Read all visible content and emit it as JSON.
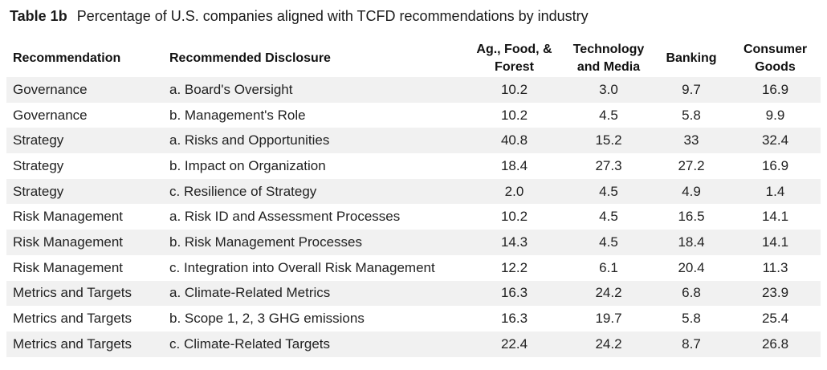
{
  "caption": {
    "label": "Table 1b",
    "title": "Percentage of U.S. companies aligned with TCFD recommendations by industry"
  },
  "headers": {
    "recommendation": "Recommendation",
    "disclosure": "Recommended Disclosure",
    "ag_line1": "Ag., Food, &",
    "ag_line2": "Forest",
    "tech_line1": "Technology",
    "tech_line2": "and Media",
    "banking": "Banking",
    "consumer_line1": "Consumer",
    "consumer_line2": "Goods"
  },
  "rows": [
    {
      "recommendation": "Governance",
      "disclosure": "a. Board's Oversight",
      "ag": "10.2",
      "tech": "3.0",
      "banking": "9.7",
      "consumer": "16.9"
    },
    {
      "recommendation": "Governance",
      "disclosure": "b. Management's Role",
      "ag": "10.2",
      "tech": "4.5",
      "banking": "5.8",
      "consumer": "9.9"
    },
    {
      "recommendation": "Strategy",
      "disclosure": "a. Risks and Opportunities",
      "ag": "40.8",
      "tech": "15.2",
      "banking": "33",
      "consumer": "32.4"
    },
    {
      "recommendation": "Strategy",
      "disclosure": "b. Impact on Organization",
      "ag": "18.4",
      "tech": "27.3",
      "banking": "27.2",
      "consumer": "16.9"
    },
    {
      "recommendation": "Strategy",
      "disclosure": "c. Resilience of Strategy",
      "ag": "2.0",
      "tech": "4.5",
      "banking": "4.9",
      "consumer": "1.4"
    },
    {
      "recommendation": "Risk Management",
      "disclosure": "a. Risk ID and Assessment Processes",
      "ag": "10.2",
      "tech": "4.5",
      "banking": "16.5",
      "consumer": "14.1"
    },
    {
      "recommendation": "Risk Management",
      "disclosure": "b. Risk Management Processes",
      "ag": "14.3",
      "tech": "4.5",
      "banking": "18.4",
      "consumer": "14.1"
    },
    {
      "recommendation": "Risk Management",
      "disclosure": "c. Integration into Overall Risk Management",
      "ag": "12.2",
      "tech": "6.1",
      "banking": "20.4",
      "consumer": "11.3"
    },
    {
      "recommendation": "Metrics and Targets",
      "disclosure": "a. Climate-Related Metrics",
      "ag": "16.3",
      "tech": "24.2",
      "banking": "6.8",
      "consumer": "23.9"
    },
    {
      "recommendation": "Metrics and Targets",
      "disclosure": "b. Scope 1, 2, 3 GHG emissions",
      "ag": "16.3",
      "tech": "19.7",
      "banking": "5.8",
      "consumer": "25.4"
    },
    {
      "recommendation": "Metrics and Targets",
      "disclosure": "c. Climate-Related Targets",
      "ag": "22.4",
      "tech": "24.2",
      "banking": "8.7",
      "consumer": "26.8"
    }
  ]
}
